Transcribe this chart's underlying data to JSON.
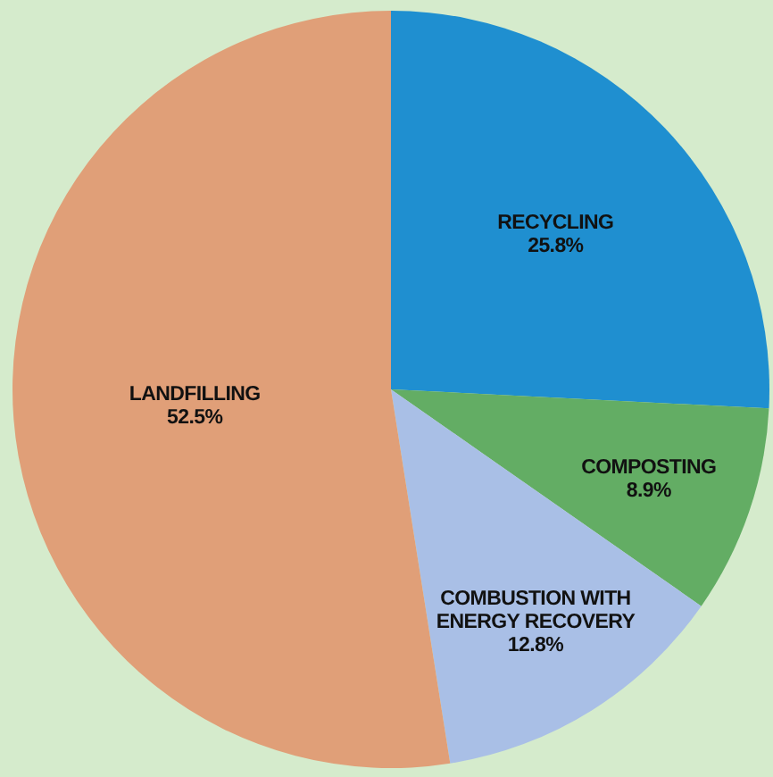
{
  "chart_data": {
    "type": "pie",
    "categories": [
      "RECYCLING",
      "COMPOSTING",
      "COMBUSTION WITH ENERGY RECOVERY",
      "LANDFILLING"
    ],
    "values": [
      25.8,
      8.9,
      12.8,
      52.5
    ],
    "colors": [
      "#1f8fd0",
      "#63ad64",
      "#a9bfe6",
      "#e09f78"
    ],
    "value_labels": [
      "25.8%",
      "8.9%",
      "12.8%",
      "52.5%"
    ]
  }
}
